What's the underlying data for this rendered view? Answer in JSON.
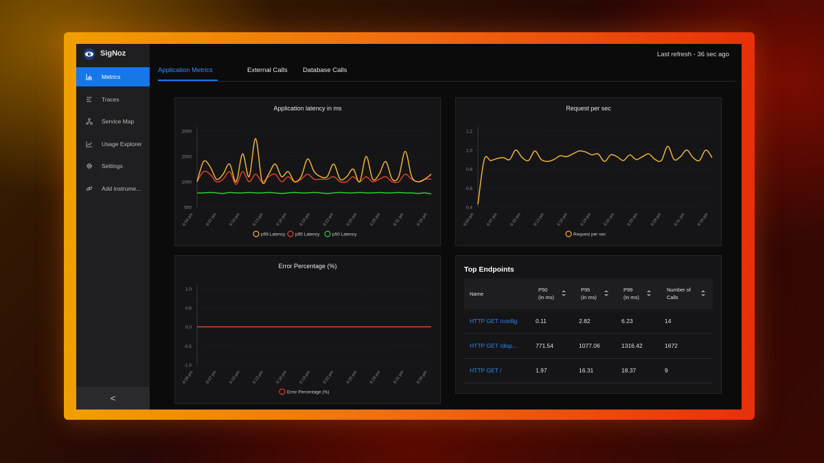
{
  "app": {
    "name": "SigNoz",
    "last_refresh": "Last refresh - 36 sec ago"
  },
  "sidebar": {
    "items": [
      {
        "label": "Metrics",
        "icon": "bar-chart-icon",
        "active": true
      },
      {
        "label": "Traces",
        "icon": "list-icon",
        "active": false
      },
      {
        "label": "Service Map",
        "icon": "network-icon",
        "active": false
      },
      {
        "label": "Usage Explorer",
        "icon": "line-chart-icon",
        "active": false
      },
      {
        "label": "Settings",
        "icon": "gear-icon",
        "active": false
      },
      {
        "label": "Add instrume...",
        "icon": "link-icon",
        "active": false
      }
    ],
    "collapse_label": "<"
  },
  "tabs": [
    {
      "label": "Application Metrics",
      "active": true
    },
    {
      "label": "External Calls",
      "active": false
    },
    {
      "label": "Database Calls",
      "active": false
    }
  ],
  "colors": {
    "accent": "#1677e8",
    "p99": "#f0b43a",
    "p95": "#e0422a",
    "p50": "#2ed12e",
    "error": "#e8401a"
  },
  "time_ticks": [
    "6:04 pm",
    "6:07 pm",
    "6:10 pm",
    "6:13 pm",
    "6:16 pm",
    "6:19 pm",
    "6:22 pm",
    "6:25 pm",
    "6:28 pm",
    "6:31 pm",
    "6:34 pm"
  ],
  "chart_data": [
    {
      "type": "line",
      "title": "Application latency in ms",
      "yticks": [
        500,
        1000,
        1500,
        2000
      ],
      "ylim": [
        500,
        2000
      ],
      "legend_position": "bottom",
      "series": [
        {
          "name": "p99 Latency",
          "values": [
            1000,
            1400,
            1300,
            1050,
            1150,
            1350,
            1000,
            1550,
            1100,
            1850,
            1000,
            1150,
            1350,
            1100,
            1200,
            1000,
            1100,
            1450,
            1200,
            1100,
            1100,
            1350,
            1050,
            1100,
            1250,
            1000,
            1500,
            1050,
            1150,
            1400,
            1050,
            1100,
            1600,
            1100,
            1000,
            1050,
            1150
          ]
        },
        {
          "name": "p95 Latency",
          "values": [
            1000,
            1200,
            1150,
            1000,
            1050,
            1200,
            950,
            1200,
            1000,
            1150,
            1000,
            1100,
            1150,
            1000,
            1100,
            1000,
            1050,
            1150,
            1050,
            1050,
            1050,
            1100,
            1000,
            1000,
            1100,
            1000,
            1100,
            1000,
            1050,
            1100,
            1000,
            1000,
            1150,
            1050,
            1000,
            1050,
            1050
          ]
        },
        {
          "name": "p50 Latency",
          "values": [
            780,
            780,
            790,
            780,
            770,
            790,
            780,
            780,
            790,
            780,
            780,
            790,
            780,
            770,
            780,
            790,
            780,
            780,
            790,
            780,
            770,
            780,
            790,
            780,
            780,
            790,
            780,
            780,
            790,
            780,
            780,
            790,
            780,
            780,
            770,
            780,
            760
          ]
        }
      ]
    },
    {
      "type": "line",
      "title": "Request per sec",
      "yticks": [
        0.4,
        0.6,
        0.8,
        1.0,
        1.2
      ],
      "ylim": [
        0.4,
        1.2
      ],
      "legend_position": "bottom",
      "series": [
        {
          "name": "Request per sec",
          "values": [
            0.43,
            0.9,
            0.89,
            0.91,
            0.92,
            0.9,
            1.0,
            0.92,
            0.89,
            0.99,
            0.9,
            0.88,
            0.9,
            0.94,
            0.93,
            0.96,
            0.99,
            0.98,
            0.95,
            0.96,
            0.88,
            0.95,
            0.93,
            0.89,
            0.95,
            0.9,
            0.93,
            0.96,
            0.9,
            0.89,
            1.04,
            0.9,
            0.93,
            1.0,
            0.92,
            0.89,
            1.0,
            0.92
          ]
        }
      ]
    },
    {
      "type": "line",
      "title": "Error Percentage (%)",
      "yticks": [
        -1.0,
        -0.5,
        0,
        0.5,
        1.0
      ],
      "ylim": [
        -1.0,
        1.0
      ],
      "legend_position": "bottom",
      "series": [
        {
          "name": "Error Percentage (%)",
          "values": [
            0,
            0,
            0,
            0,
            0,
            0,
            0,
            0,
            0,
            0,
            0
          ]
        }
      ]
    }
  ],
  "top_endpoints": {
    "title": "Top Endpoints",
    "headers": {
      "name": "Name",
      "p50": [
        "P50",
        "(in ms)"
      ],
      "p95": [
        "P95",
        "(in ms)"
      ],
      "p99": [
        "P99",
        "(in ms)"
      ],
      "calls": [
        "Number of",
        "Calls"
      ]
    },
    "rows": [
      {
        "name": "HTTP GET /config",
        "p50": "0.11",
        "p95": "2.82",
        "p99": "6.23",
        "calls": "14"
      },
      {
        "name": "HTTP GET /disp...",
        "p50": "771.54",
        "p95": "1077.06",
        "p99": "1316.42",
        "calls": "1672"
      },
      {
        "name": "HTTP GET /",
        "p50": "1.97",
        "p95": "16.31",
        "p99": "18.37",
        "calls": "9"
      }
    ]
  }
}
